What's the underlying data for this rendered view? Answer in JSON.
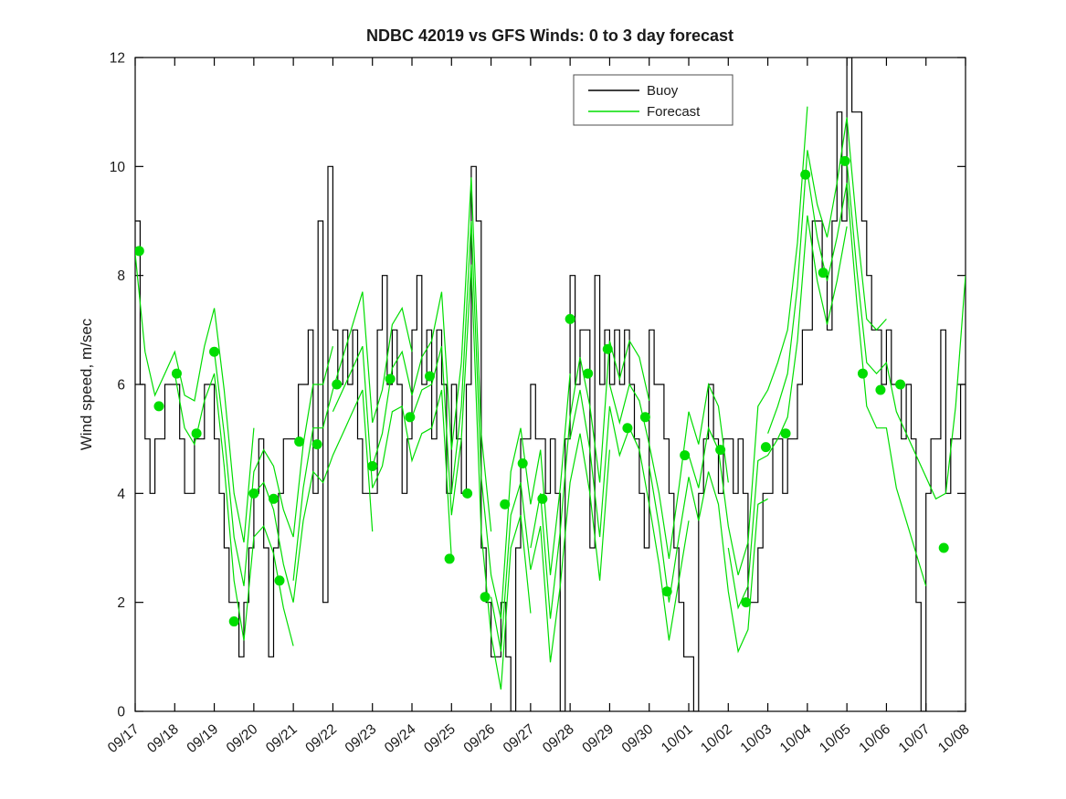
{
  "figure": {
    "title": "NDBC 42019 vs GFS Winds: 0 to 3 day forecast",
    "ylabel": "Wind speed, m/sec"
  },
  "legend": {
    "items": [
      {
        "label": "Buoy",
        "color": "#000000"
      },
      {
        "label": "Forecast",
        "color": "#00dd00"
      }
    ]
  },
  "chart_data": {
    "type": "line",
    "title": "NDBC 42019 vs GFS Winds: 0 to 3 day forecast",
    "xlabel": "",
    "ylabel": "Wind speed, m/sec",
    "ylim": [
      0,
      12
    ],
    "yticks": [
      0,
      2,
      4,
      6,
      8,
      10,
      12
    ],
    "x_tick_labels": [
      "09/17",
      "09/18",
      "09/19",
      "09/20",
      "09/21",
      "09/22",
      "09/23",
      "09/24",
      "09/25",
      "09/26",
      "09/27",
      "09/28",
      "09/29",
      "09/30",
      "10/01",
      "10/02",
      "10/03",
      "10/04",
      "10/05",
      "10/06",
      "10/07",
      "10/08"
    ],
    "x_days_span": 21,
    "grid": false,
    "legend_position": "top-center-inside",
    "colors": {
      "buoy": "#000000",
      "forecast": "#00dd00"
    },
    "series": [
      {
        "name": "Buoy",
        "style": "stairs",
        "color": "#000000",
        "t_start_day": 0,
        "t_step_days": 0.125,
        "values": [
          9,
          6,
          5,
          4,
          5,
          5,
          6,
          6,
          6,
          5,
          4,
          4,
          5,
          5,
          6,
          6,
          5,
          4,
          3,
          2,
          2,
          1,
          2,
          3,
          4,
          5,
          3,
          1,
          3,
          4,
          5,
          5,
          5,
          6,
          6,
          7,
          4,
          9,
          2,
          10,
          7,
          6,
          7,
          6,
          7,
          5,
          4,
          4,
          4,
          7,
          8,
          6,
          7,
          6,
          4,
          5,
          7,
          8,
          6,
          7,
          5,
          7,
          6,
          4,
          6,
          5,
          4,
          6,
          10,
          9,
          3,
          2,
          1,
          1,
          2,
          1,
          0,
          3,
          5,
          5,
          6,
          5,
          5,
          4,
          5,
          4,
          0,
          5,
          8,
          6,
          7,
          7,
          3,
          8,
          6,
          7,
          6,
          7,
          6,
          7,
          6,
          5,
          4,
          3,
          7,
          6,
          6,
          5,
          4,
          3,
          2,
          1,
          1,
          0,
          4,
          5,
          6,
          5,
          4,
          5,
          5,
          4,
          5,
          4,
          2,
          2,
          3,
          4,
          4,
          5,
          5,
          4,
          5,
          5,
          6,
          7,
          7,
          9,
          9,
          8,
          7,
          9,
          11,
          9,
          12,
          11,
          11,
          9,
          8,
          7,
          7,
          6,
          7,
          6,
          6,
          5,
          6,
          5,
          2,
          0,
          4,
          5,
          5,
          7,
          4,
          5,
          5,
          6,
          6
        ]
      },
      {
        "name": "Forecast",
        "style": "multi-run-line",
        "color": "#00dd00",
        "t_step_days": 0.25,
        "runs": [
          {
            "start_day": 0,
            "values": [
              8.4,
              6.6,
              5.8,
              6.2,
              6.6,
              5.8,
              5.7,
              6.7,
              7.4,
              5.9,
              4.0,
              3.1,
              5.2
            ]
          },
          {
            "start_day": 1,
            "values": [
              6.2,
              5.2,
              4.9,
              5.7,
              6.2,
              4.5,
              2.4,
              1.3,
              3.2,
              3.4,
              2.9,
              1.9,
              1.2
            ]
          },
          {
            "start_day": 2,
            "values": [
              6.6,
              5.1,
              3.2,
              2.3,
              4.4,
              4.8,
              4.5,
              3.7,
              3.2,
              4.9,
              6.0,
              6.0,
              6.7
            ]
          },
          {
            "start_day": 3,
            "values": [
              4.0,
              4.2,
              3.7,
              2.7,
              2.0,
              3.5,
              4.4,
              4.2,
              4.7,
              5.1,
              5.5,
              5.9,
              3.3
            ]
          },
          {
            "start_day": 4,
            "values": [
              2.4,
              4.1,
              5.2,
              5.2,
              5.9,
              6.5,
              7.1,
              7.7,
              5.3,
              5.9,
              7.1,
              7.4,
              6.6
            ]
          },
          {
            "start_day": 5,
            "values": [
              5.5,
              5.9,
              6.3,
              6.7,
              4.1,
              4.5,
              5.5,
              5.6,
              4.6,
              5.1,
              5.2,
              5.9,
              2.8
            ]
          },
          {
            "start_day": 6,
            "values": [
              4.5,
              5.1,
              6.3,
              6.6,
              5.8,
              6.5,
              6.8,
              7.7,
              4.8,
              6.4,
              9.8,
              5.1,
              3.3
            ]
          },
          {
            "start_day": 7,
            "values": [
              5.4,
              5.9,
              6.0,
              6.7,
              3.6,
              5.0,
              8.2,
              3.3,
              1.4,
              0.4,
              3.0,
              3.6,
              1.8
            ]
          },
          {
            "start_day": 8,
            "values": [
              4.0,
              5.6,
              9.0,
              4.3,
              2.5,
              1.7,
              4.4,
              5.2,
              3.8,
              4.8,
              2.5,
              4.1,
              6.2
            ]
          },
          {
            "start_day": 9,
            "values": [
              2.1,
              1.1,
              3.6,
              4.2,
              2.6,
              3.4,
              0.9,
              2.3,
              4.2,
              5.1,
              4.0,
              2.4,
              4.8
            ]
          },
          {
            "start_day": 10,
            "values": [
              3.0,
              4.0,
              1.7,
              3.3,
              5.4,
              6.5,
              5.6,
              4.2,
              6.8,
              6.1,
              6.8,
              6.5,
              5.7
            ]
          },
          {
            "start_day": 11,
            "values": [
              5.0,
              5.9,
              4.8,
              3.2,
              5.6,
              4.7,
              5.2,
              4.8,
              3.8,
              2.7,
              1.3,
              2.4,
              3.5
            ]
          },
          {
            "start_day": 12,
            "values": [
              6.0,
              5.3,
              6.0,
              5.7,
              4.9,
              4.0,
              2.8,
              4.1,
              5.5,
              4.9,
              6.0,
              5.6,
              4.2
            ]
          },
          {
            "start_day": 13,
            "values": [
              4.5,
              3.4,
              2.0,
              3.2,
              4.3,
              3.5,
              4.4,
              3.8,
              2.2,
              1.1,
              1.5,
              3.8,
              3.9
            ]
          },
          {
            "start_day": 14,
            "values": [
              4.7,
              4.1,
              5.2,
              4.8,
              3.4,
              2.5,
              3.1,
              5.6,
              5.9,
              6.4,
              7.0,
              8.6,
              11.1
            ]
          },
          {
            "start_day": 15,
            "values": [
              3.0,
              1.9,
              2.3,
              4.6,
              4.7,
              5.0,
              5.4,
              6.8,
              9.1,
              7.9,
              7.1,
              7.9,
              8.9
            ]
          },
          {
            "start_day": 16,
            "values": [
              5.1,
              5.6,
              6.2,
              7.8,
              10.3,
              9.3,
              8.7,
              9.7,
              10.9,
              8.9,
              7.2,
              7.0,
              7.2
            ]
          },
          {
            "start_day": 17,
            "values": [
              9.9,
              8.7,
              7.9,
              8.7,
              9.7,
              7.5,
              5.6,
              5.2,
              5.2,
              4.1,
              3.5,
              2.9,
              2.3
            ]
          },
          {
            "start_day": 18,
            "values": [
              10.1,
              8.1,
              6.4,
              6.2,
              6.4,
              5.5,
              5.1,
              4.7,
              4.3,
              3.9,
              4.0,
              5.6,
              8.0
            ]
          }
        ]
      }
    ],
    "forecast_markers": {
      "color": "#00dd00",
      "points": [
        [
          0.1,
          8.45
        ],
        [
          0.6,
          5.6
        ],
        [
          1.05,
          6.2
        ],
        [
          1.55,
          5.1
        ],
        [
          2.0,
          6.6
        ],
        [
          2.5,
          1.65
        ],
        [
          3.0,
          4.0
        ],
        [
          3.5,
          3.9
        ],
        [
          3.65,
          2.4
        ],
        [
          4.15,
          4.95
        ],
        [
          4.6,
          4.9
        ],
        [
          5.1,
          6.0
        ],
        [
          6.0,
          4.5
        ],
        [
          6.45,
          6.1
        ],
        [
          6.95,
          5.4
        ],
        [
          7.45,
          6.15
        ],
        [
          7.95,
          2.8
        ],
        [
          8.4,
          4.0
        ],
        [
          8.85,
          2.1
        ],
        [
          9.35,
          3.8
        ],
        [
          9.8,
          4.55
        ],
        [
          10.3,
          3.9
        ],
        [
          11.0,
          7.2
        ],
        [
          11.45,
          6.2
        ],
        [
          11.95,
          6.65
        ],
        [
          12.45,
          5.2
        ],
        [
          12.9,
          5.4
        ],
        [
          13.45,
          2.2
        ],
        [
          13.9,
          4.7
        ],
        [
          14.8,
          4.8
        ],
        [
          15.45,
          2.0
        ],
        [
          15.95,
          4.85
        ],
        [
          16.45,
          5.1
        ],
        [
          16.95,
          9.85
        ],
        [
          17.4,
          8.05
        ],
        [
          17.95,
          10.1
        ],
        [
          18.4,
          6.2
        ],
        [
          18.85,
          5.9
        ],
        [
          19.35,
          6.0
        ],
        [
          20.45,
          3.0
        ]
      ]
    }
  }
}
